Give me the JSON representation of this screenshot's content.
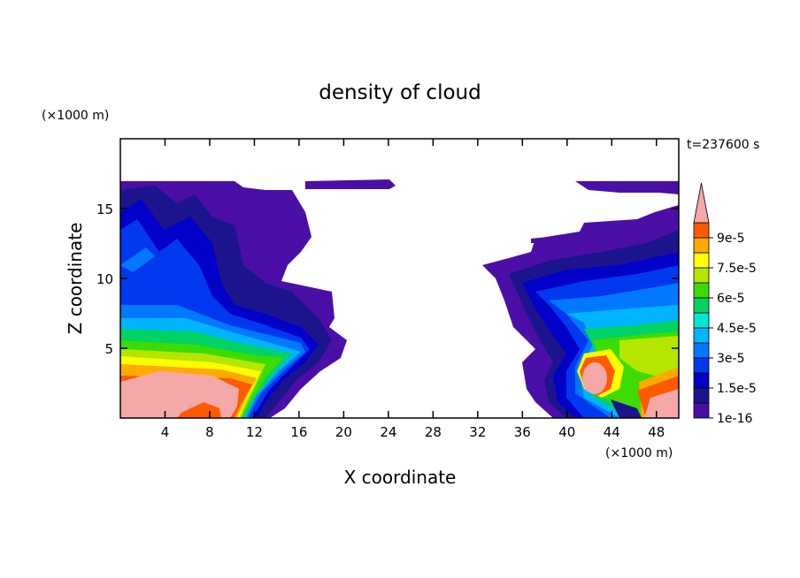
{
  "chart_data": {
    "type": "contour",
    "title": "density of cloud",
    "xlabel": "X coordinate",
    "ylabel": "Z coordinate",
    "xunit": "(×1000 m)",
    "yunit": "(×1000 m)",
    "annotation": "t=237600 s",
    "xlim": [
      0,
      50
    ],
    "xticks": [
      4,
      8,
      12,
      16,
      20,
      24,
      28,
      32,
      36,
      40,
      44,
      48
    ],
    "ylim": [
      0,
      20
    ],
    "yticks": [
      5,
      10,
      15
    ],
    "colorbar": {
      "levels": [
        1e-16,
        7.5e-06,
        1.5e-05,
        2.25e-05,
        3e-05,
        3.75e-05,
        4.5e-05,
        5.25e-05,
        6e-05,
        6.75e-05,
        7.5e-05,
        8.25e-05,
        9e-05,
        9.75e-05
      ],
      "colors": [
        "#4b0fa8",
        "#1c148c",
        "#0000c8",
        "#0038f0",
        "#0078ff",
        "#00b4ff",
        "#00e6d2",
        "#00d264",
        "#3cdc00",
        "#b4e600",
        "#ffff00",
        "#ffaa00",
        "#ff5a00"
      ],
      "extend_color": "#f4a8a8",
      "ticks": [
        {
          "value": 1e-16,
          "label": "1e-16"
        },
        {
          "value": 1.5e-05,
          "label": "1.5e-5"
        },
        {
          "value": 3e-05,
          "label": "3e-5"
        },
        {
          "value": 4.5e-05,
          "label": "4.5e-5"
        },
        {
          "value": 6e-05,
          "label": "6e-5"
        },
        {
          "value": 7.5e-05,
          "label": "7.5e-5"
        },
        {
          "value": 9e-05,
          "label": "9e-5"
        }
      ]
    }
  }
}
